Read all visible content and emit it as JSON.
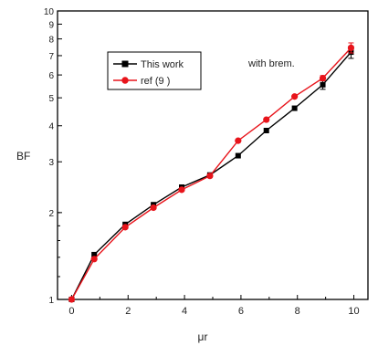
{
  "chart_data": {
    "type": "line",
    "xlabel": "μr",
    "ylabel": "BF",
    "annotation": "with brem.",
    "xlim": [
      -0.5,
      10.5
    ],
    "ylim": [
      1,
      10
    ],
    "yscale": "log",
    "x_ticks": [
      0,
      2,
      4,
      6,
      8,
      10
    ],
    "x_tick_labels": [
      "0",
      "2",
      "4",
      "6",
      "8",
      "10"
    ],
    "y_labeled_ticks": [
      1,
      2,
      3,
      4,
      5,
      6,
      7,
      8,
      9,
      10
    ],
    "y_tick_labels": [
      "1",
      "2",
      "3",
      "4",
      "5",
      "6",
      "7",
      "8",
      "9",
      "10"
    ],
    "grid": false,
    "legend_position": "top-left",
    "series": [
      {
        "name": "This work",
        "color": "#000000",
        "marker": "square",
        "x": [
          0,
          0.8,
          1.9,
          2.9,
          3.9,
          4.9,
          5.9,
          6.9,
          7.9,
          8.9,
          9.9
        ],
        "y": [
          1.0,
          1.43,
          1.82,
          2.13,
          2.45,
          2.7,
          3.15,
          3.85,
          4.6,
          5.55,
          7.2
        ],
        "error": [
          0,
          0,
          0,
          0,
          0,
          0,
          0,
          0,
          0,
          0.2,
          0.35
        ]
      },
      {
        "name": "ref (9 )",
        "color": "#e8141b",
        "marker": "circle",
        "x": [
          0,
          0.8,
          1.9,
          2.9,
          3.9,
          4.9,
          5.9,
          6.9,
          7.9,
          8.9,
          9.9
        ],
        "y": [
          1.0,
          1.38,
          1.78,
          2.08,
          2.4,
          2.68,
          3.55,
          4.2,
          5.05,
          5.85,
          7.45
        ],
        "error": [
          0,
          0,
          0,
          0,
          0,
          0,
          0,
          0,
          0,
          0.12,
          0.3
        ]
      }
    ]
  }
}
